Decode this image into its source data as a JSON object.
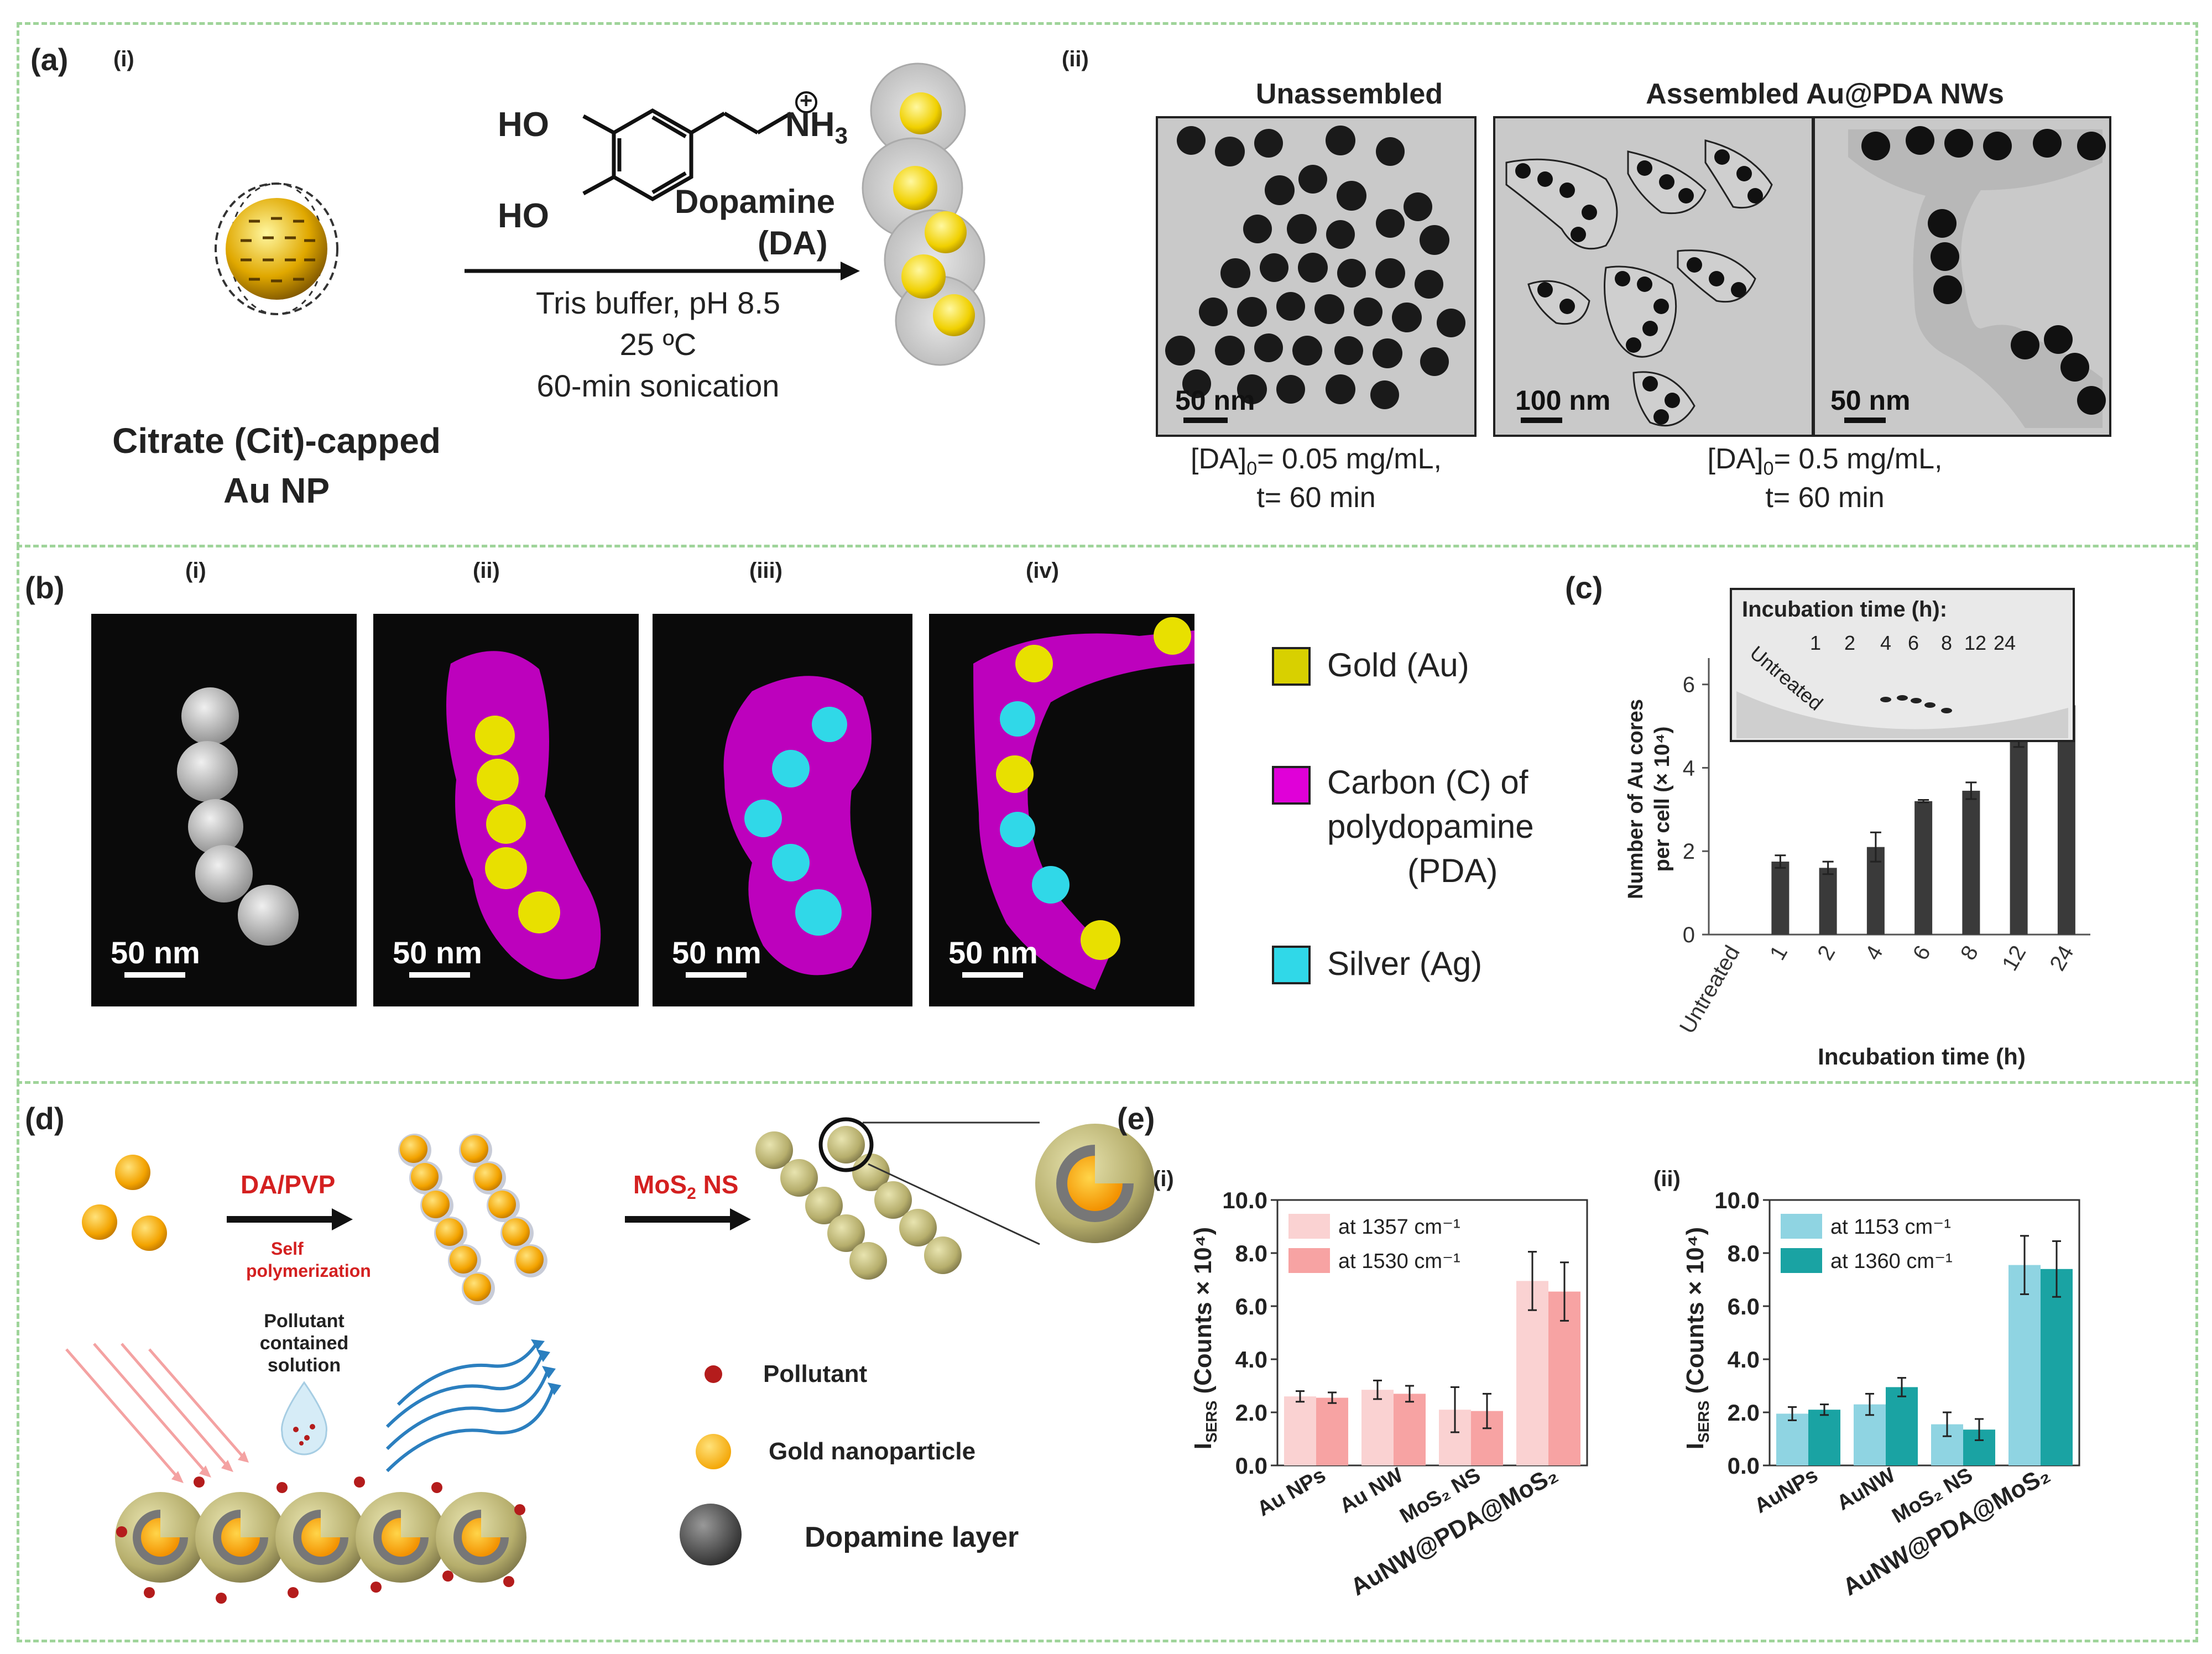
{
  "panel_a": {
    "label_a": "(a)",
    "sub_i": "(i)",
    "sub_ii": "(ii)",
    "reagent_name": "Dopamine",
    "reagent_abbr": "(DA)",
    "ho_top": "HO",
    "ho_bottom": "HO",
    "nh3": "NH",
    "nh3_sub": "3",
    "charge": "+",
    "conditions": [
      "Tris buffer, pH 8.5",
      "25 ºC",
      "60-min sonication"
    ],
    "np_caption_line1": "Citrate (Cit)-capped",
    "np_caption_line2": "Au NP",
    "tem_title_1": "Unassembled",
    "tem_title_2": "Assembled Au@PDA NWs",
    "scale_1": "50 nm",
    "scale_2": "100 nm",
    "scale_3": "50 nm",
    "cond_1_line1": "[DA]",
    "cond_1_sub": "0",
    "cond_1_rest": "= 0.05 mg/mL,",
    "cond_1_line2": "t= 60 min",
    "cond_2_line1": "[DA]",
    "cond_2_sub": "0",
    "cond_2_rest": "= 0.5 mg/mL,",
    "cond_2_line2": "t= 60 min"
  },
  "panel_b": {
    "label_b": "(b)",
    "subs": [
      "(i)",
      "(ii)",
      "(iii)",
      "(iv)"
    ],
    "scales": [
      "50 nm",
      "50 nm",
      "50 nm",
      "50 nm"
    ],
    "legend": {
      "gold": "Gold (Au)",
      "carbon_l1": "Carbon (C) of",
      "carbon_l2": "polydopamine",
      "carbon_l3": "(PDA)",
      "silver": "Silver (Ag)"
    },
    "colors": {
      "gold": "#e8e000",
      "carbon": "#e000d8",
      "silver": "#30d8e8"
    }
  },
  "panel_c": {
    "label_c": "(c)",
    "inset_title": "Incubation time (h):",
    "inset_untreated": "Untreated",
    "inset_times": [
      "1",
      "2",
      "4",
      "6",
      "8",
      "12",
      "24"
    ]
  },
  "panel_d": {
    "label_d": "(d)",
    "step1": "DA/PVP",
    "step1_sub_l1": "Self",
    "step1_sub_l2": "polymerization",
    "step2": "MoS",
    "step2_sub": "2",
    "step2_rest": " NS",
    "pollutant_sol_l1": "Pollutant",
    "pollutant_sol_l2": "contained",
    "pollutant_sol_l3": "solution",
    "legend_pollutant": "Pollutant",
    "legend_gold": "Gold nanoparticle",
    "legend_dopamine": "Dopamine layer"
  },
  "panel_e": {
    "label_e": "(e)",
    "sub_i": "(i)",
    "sub_ii": "(ii)"
  },
  "chart_data": [
    {
      "id": "c",
      "type": "bar",
      "categories": [
        "Untreated",
        "1",
        "2",
        "4",
        "6",
        "8",
        "12",
        "24"
      ],
      "values": [
        0,
        1.75,
        1.6,
        2.1,
        3.2,
        3.45,
        4.95,
        5.5
      ],
      "errors": [
        0,
        0.15,
        0.15,
        0.35,
        0.03,
        0.2,
        0.45,
        0.45
      ],
      "xlabel": "Incubation time (h)",
      "ylabel": "Number of Au cores per cell (× 10⁴)",
      "ylabel_l1": "Number of Au cores",
      "ylabel_l2": "per cell (× 10⁴)",
      "yticks": [
        "0",
        "2",
        "4",
        "6"
      ],
      "ylim": [
        0,
        6.5
      ],
      "color": "#3a3a3a"
    },
    {
      "id": "e_i",
      "type": "bar",
      "categories": [
        "Au NPs",
        "Au NW",
        "MoS₂ NS",
        "AuNW@PDA@MoS₂"
      ],
      "series": [
        {
          "name": "at 1357 cm⁻¹",
          "values": [
            2.6,
            2.85,
            2.1,
            6.95
          ],
          "errors": [
            0.2,
            0.35,
            0.85,
            1.1
          ],
          "color": "#fad2d2"
        },
        {
          "name": "at 1530 cm⁻¹",
          "values": [
            2.55,
            2.7,
            2.05,
            6.55
          ],
          "errors": [
            0.2,
            0.3,
            0.65,
            1.1
          ],
          "color": "#f7a3a3"
        }
      ],
      "ylabel": "Iₛₑᵣₛ (Counts × 10⁴)",
      "ylabel_main": "I",
      "ylabel_sub": "SERS",
      "ylabel_rest": " (Counts × 10⁴)",
      "yticks": [
        "0.0",
        "2.0",
        "4.0",
        "6.0",
        "8.0",
        "10.0"
      ],
      "ylim": [
        0,
        10
      ]
    },
    {
      "id": "e_ii",
      "type": "bar",
      "categories": [
        "AuNPs",
        "AuNW",
        "MoS₂ NS",
        "AuNW@PDA@MoS₂"
      ],
      "series": [
        {
          "name": "at 1153 cm⁻¹",
          "values": [
            1.95,
            2.3,
            1.55,
            7.55
          ],
          "errors": [
            0.25,
            0.4,
            0.45,
            1.1
          ],
          "color": "#8fd4e2"
        },
        {
          "name": "at 1360 cm⁻¹",
          "values": [
            2.1,
            2.95,
            1.35,
            7.4
          ],
          "errors": [
            0.2,
            0.35,
            0.4,
            1.05
          ],
          "color": "#1aa3a3"
        }
      ],
      "ylabel": "Iₛₑᵣₛ (Counts × 10⁴)",
      "ylabel_main": "I",
      "ylabel_sub": "SERS",
      "ylabel_rest": " (Counts × 10⁴)",
      "yticks": [
        "0.0",
        "2.0",
        "4.0",
        "6.0",
        "8.0",
        "10.0"
      ],
      "ylim": [
        0,
        10
      ]
    }
  ]
}
